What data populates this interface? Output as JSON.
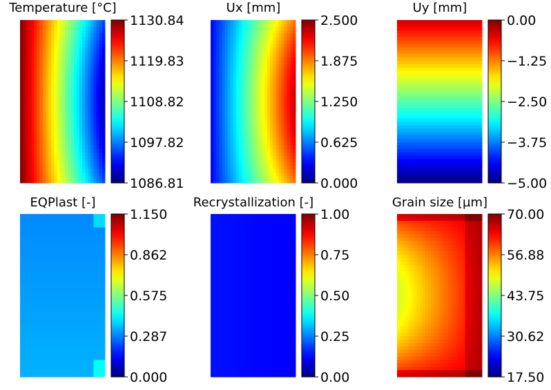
{
  "chart_data": [
    {
      "type": "heatmap",
      "title": "Temperature [°C]",
      "field": "temperature",
      "colormap": "jet",
      "range": [
        1086.81,
        1130.84
      ],
      "colorbar_ticks": [
        "1130.84",
        "1119.83",
        "1108.82",
        "1097.82",
        "1086.81"
      ]
    },
    {
      "type": "heatmap",
      "title": "Ux [mm]",
      "field": "ux",
      "colormap": "jet",
      "range": [
        0.0,
        2.5
      ],
      "colorbar_ticks": [
        "2.500",
        "1.875",
        "1.250",
        "0.625",
        "0.000"
      ]
    },
    {
      "type": "heatmap",
      "title": "Uy [mm]",
      "field": "uy",
      "colormap": "jet",
      "range": [
        -5.0,
        0.0
      ],
      "colorbar_ticks": [
        "0.00",
        "−1.25",
        "−2.50",
        "−3.75",
        "−5.00"
      ]
    },
    {
      "type": "heatmap",
      "title": "EQPlast [-]",
      "field": "eqplast",
      "colormap": "jet",
      "range": [
        0.0,
        1.15
      ],
      "colorbar_ticks": [
        "1.150",
        "0.862",
        "0.575",
        "0.287",
        "0.000"
      ]
    },
    {
      "type": "heatmap",
      "title": "Recrystallization [-]",
      "field": "recrystallization",
      "colormap": "jet",
      "range": [
        0.0,
        1.0
      ],
      "colorbar_ticks": [
        "1.00",
        "0.75",
        "0.50",
        "0.25",
        "0.00"
      ]
    },
    {
      "type": "heatmap",
      "title": "Grain size [µm]",
      "field": "grain_size",
      "colormap": "jet",
      "range": [
        17.5,
        70.0
      ],
      "colorbar_ticks": [
        "70.00",
        "56.88",
        "43.75",
        "30.62",
        "17.50"
      ]
    }
  ]
}
